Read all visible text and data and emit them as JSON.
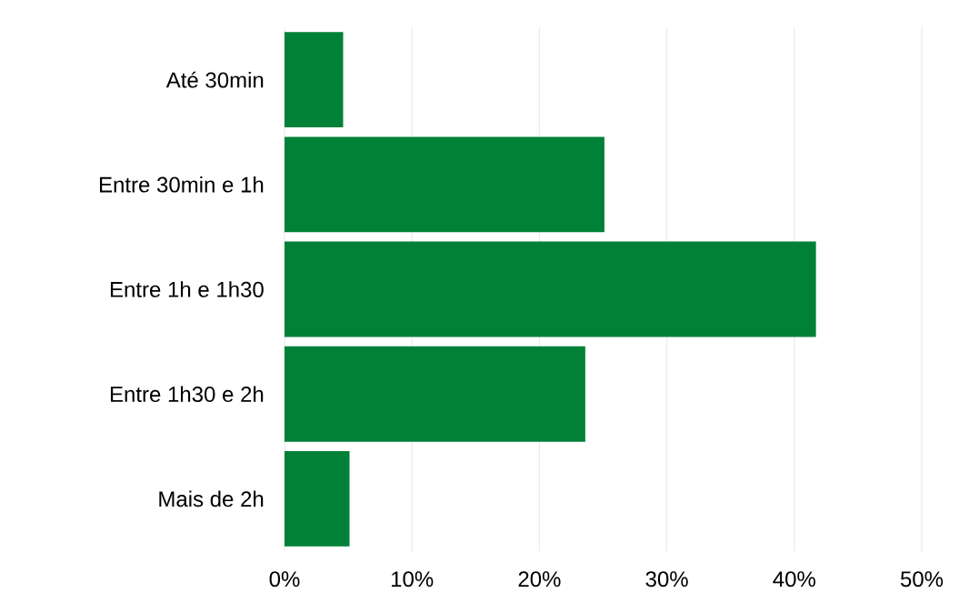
{
  "chart_data": {
    "type": "bar",
    "orientation": "horizontal",
    "categories": [
      "Até 30min",
      "Entre 30min e 1h",
      "Entre 1h e 1h30",
      "Entre 1h30 e 2h",
      "Mais de 2h"
    ],
    "values": [
      4.6,
      25.1,
      41.7,
      23.6,
      5.1
    ],
    "color": "#008137",
    "xlim": [
      0,
      50
    ],
    "xticks": [
      {
        "value": 0,
        "label": "0%"
      },
      {
        "value": 10,
        "label": "10%"
      },
      {
        "value": 20,
        "label": "20%"
      },
      {
        "value": 30,
        "label": "30%"
      },
      {
        "value": 40,
        "label": "40%"
      },
      {
        "value": 50,
        "label": "50%"
      }
    ],
    "grid": "x"
  }
}
